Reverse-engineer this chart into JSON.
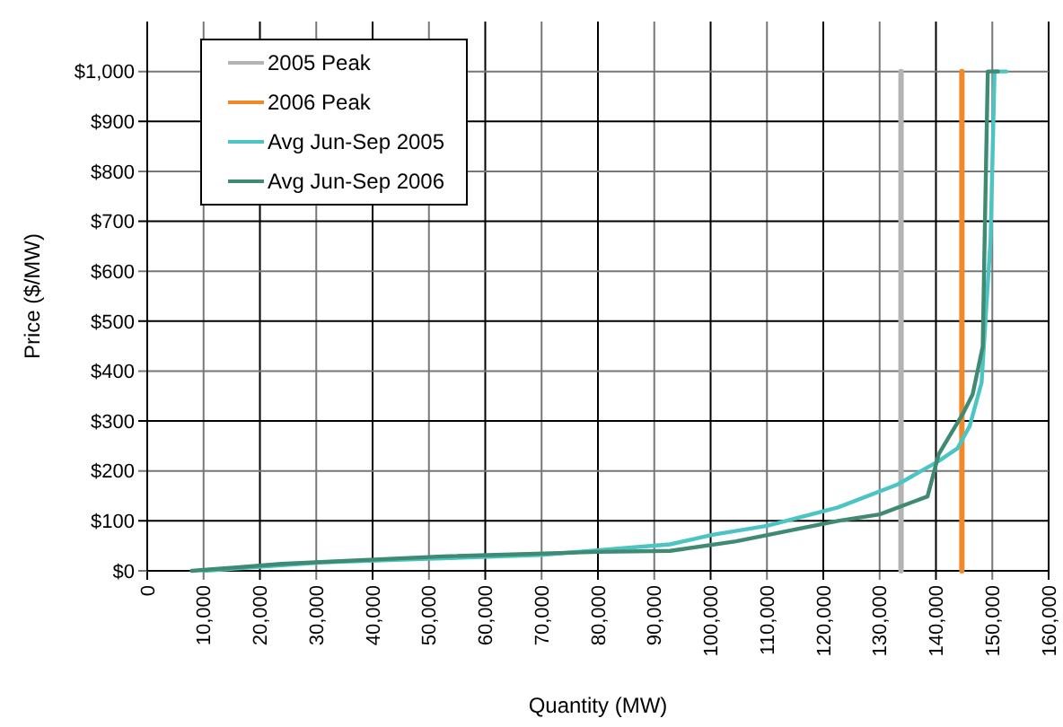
{
  "chart_data": {
    "type": "line",
    "xlabel": "Quantity (MW)",
    "ylabel": "Price ($/MW)",
    "xlim": [
      0,
      160000
    ],
    "ylim": [
      0,
      1100
    ],
    "xticks": [
      0,
      {
        "value": 10000,
        "label": "10,000"
      },
      {
        "value": 20000,
        "label": "20,000"
      },
      {
        "value": 30000,
        "label": "30,000"
      },
      {
        "value": 40000,
        "label": "40,000"
      },
      {
        "value": 50000,
        "label": "50,000"
      },
      {
        "value": 60000,
        "label": "60,000"
      },
      {
        "value": 70000,
        "label": "70,000"
      },
      {
        "value": 80000,
        "label": "80,000"
      },
      {
        "value": 90000,
        "label": "90,000"
      },
      {
        "value": 100000,
        "label": "100,000"
      },
      {
        "value": 110000,
        "label": "110,000"
      },
      {
        "value": 120000,
        "label": "120,000"
      },
      {
        "value": 130000,
        "label": "130,000"
      },
      {
        "value": 140000,
        "label": "140,000"
      },
      {
        "value": 150000,
        "label": "150,000"
      },
      {
        "value": 160000,
        "label": "160,000"
      }
    ],
    "yticks": [
      {
        "value": 0,
        "label": "$0"
      },
      {
        "value": 100,
        "label": "$100"
      },
      {
        "value": 200,
        "label": "$200"
      },
      {
        "value": 300,
        "label": "$300"
      },
      {
        "value": 400,
        "label": "$400"
      },
      {
        "value": 500,
        "label": "$500"
      },
      {
        "value": 600,
        "label": "$600"
      },
      {
        "value": 700,
        "label": "$700"
      },
      {
        "value": 800,
        "label": "$800"
      },
      {
        "value": 900,
        "label": "$900"
      },
      {
        "value": 1000,
        "label": "$1,000"
      }
    ],
    "grid": true,
    "legend": "top left",
    "line_style": "solid",
    "marker": "none",
    "series": [
      {
        "name": "2005 Peak",
        "color": "#b3b3b3",
        "x": [
          133800,
          133800
        ],
        "values": [
          0,
          1000
        ]
      },
      {
        "name": "2006 Peak",
        "color": "#f0892a",
        "x": [
          144600,
          144600
        ],
        "values": [
          0,
          1000
        ]
      },
      {
        "name": "Avg Jun-Sep 2005",
        "color": "#4cc4c4",
        "x": [
          10000,
          20000,
          31200,
          50000,
          70000,
          92800,
          100300,
          110000,
          122600,
          133200,
          140500,
          143800,
          146000,
          148100,
          149700,
          150400,
          152500
        ],
        "values": [
          0,
          8,
          17,
          24,
          32,
          53,
          72,
          90,
          127,
          173,
          220,
          245,
          290,
          377,
          665,
          1000,
          1000
        ]
      },
      {
        "name": "Avg Jun-Sep 2006",
        "color": "#3f8a72",
        "x": [
          7900,
          23800,
          52500,
          80000,
          92800,
          104500,
          122600,
          130000,
          138500,
          140500,
          144900,
          146500,
          148300,
          148600,
          149200,
          151000
        ],
        "values": [
          0,
          14,
          29,
          38,
          40,
          59,
          100,
          113,
          149,
          234,
          317,
          353,
          449,
          640,
          1000,
          1000
        ]
      }
    ]
  }
}
